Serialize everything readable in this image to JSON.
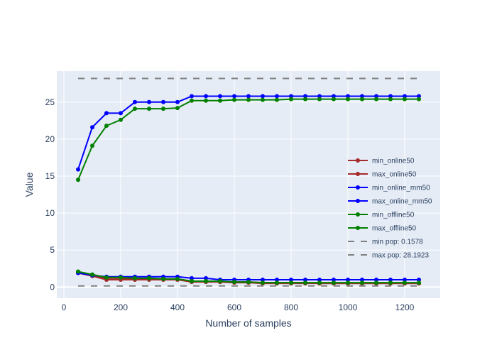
{
  "chart_data": {
    "type": "line",
    "xlabel": "Number of samples",
    "ylabel": "Value",
    "xlim": [
      -25,
      1325
    ],
    "ylim": [
      -1.5,
      29.2
    ],
    "xticks": [
      0,
      200,
      400,
      600,
      800,
      1000,
      1200
    ],
    "yticks": [
      0,
      5,
      10,
      15,
      20,
      25
    ],
    "grid": true,
    "legend_position": "right",
    "x": [
      50,
      100,
      150,
      200,
      250,
      300,
      350,
      400,
      450,
      500,
      550,
      600,
      650,
      700,
      750,
      800,
      850,
      900,
      950,
      1000,
      1050,
      1100,
      1150,
      1200,
      1250
    ],
    "series": [
      {
        "name": "min_online50",
        "color": "#a52a2a",
        "dash": "solid",
        "markers": true,
        "values": [
          1.9,
          1.5,
          1.0,
          1.0,
          1.0,
          1.0,
          1.0,
          1.0,
          0.7,
          0.7,
          0.7,
          0.6,
          0.6,
          0.5,
          0.5,
          0.5,
          0.5,
          0.5,
          0.5,
          0.5,
          0.5,
          0.5,
          0.5,
          0.5,
          0.5
        ]
      },
      {
        "name": "max_online50",
        "color": "#a52a2a",
        "dash": "solid",
        "markers": true,
        "values": [
          2.0,
          1.6,
          1.2,
          1.2,
          1.1,
          1.1,
          1.1,
          1.1,
          0.8,
          0.8,
          0.7,
          0.7,
          0.7,
          0.6,
          0.6,
          0.6,
          0.6,
          0.5,
          0.5,
          0.5,
          0.5,
          0.5,
          0.5,
          0.5,
          0.5
        ]
      },
      {
        "name": "min_online_mm50",
        "color": "#0000ff",
        "dash": "solid",
        "markers": true,
        "values": [
          1.9,
          1.6,
          1.4,
          1.4,
          1.4,
          1.4,
          1.4,
          1.4,
          1.2,
          1.2,
          1.0,
          1.0,
          1.0,
          1.0,
          1.0,
          1.0,
          1.0,
          1.0,
          1.0,
          1.0,
          1.0,
          1.0,
          1.0,
          1.0,
          1.0
        ]
      },
      {
        "name": "max_online_mm50",
        "color": "#0000ff",
        "dash": "solid",
        "markers": true,
        "values": [
          15.9,
          21.6,
          23.5,
          23.5,
          25.0,
          25.0,
          25.0,
          25.0,
          25.8,
          25.8,
          25.8,
          25.8,
          25.8,
          25.8,
          25.8,
          25.8,
          25.8,
          25.8,
          25.8,
          25.8,
          25.8,
          25.8,
          25.8,
          25.8,
          25.8
        ]
      },
      {
        "name": "min_offline50",
        "color": "#008000",
        "dash": "solid",
        "markers": true,
        "values": [
          2.1,
          1.7,
          1.3,
          1.3,
          1.2,
          1.2,
          1.1,
          1.1,
          0.8,
          0.8,
          0.8,
          0.7,
          0.7,
          0.6,
          0.6,
          0.6,
          0.6,
          0.6,
          0.6,
          0.6,
          0.6,
          0.6,
          0.6,
          0.6,
          0.6
        ]
      },
      {
        "name": "max_offline50",
        "color": "#008000",
        "dash": "solid",
        "markers": true,
        "values": [
          14.5,
          19.1,
          21.8,
          22.6,
          24.1,
          24.1,
          24.1,
          24.2,
          25.2,
          25.2,
          25.2,
          25.3,
          25.3,
          25.3,
          25.3,
          25.4,
          25.4,
          25.4,
          25.4,
          25.4,
          25.4,
          25.4,
          25.4,
          25.4,
          25.4
        ]
      },
      {
        "name": "min pop: 0.1578",
        "color": "#808080",
        "dash": "dash",
        "markers": false,
        "values": [
          0.1578,
          0.1578,
          0.1578,
          0.1578,
          0.1578,
          0.1578,
          0.1578,
          0.1578,
          0.1578,
          0.1578,
          0.1578,
          0.1578,
          0.1578,
          0.1578,
          0.1578,
          0.1578,
          0.1578,
          0.1578,
          0.1578,
          0.1578,
          0.1578,
          0.1578,
          0.1578,
          0.1578,
          0.1578
        ]
      },
      {
        "name": "max pop: 28.1923",
        "color": "#808080",
        "dash": "dash",
        "markers": false,
        "values": [
          28.1923,
          28.1923,
          28.1923,
          28.1923,
          28.1923,
          28.1923,
          28.1923,
          28.1923,
          28.1923,
          28.1923,
          28.1923,
          28.1923,
          28.1923,
          28.1923,
          28.1923,
          28.1923,
          28.1923,
          28.1923,
          28.1923,
          28.1923,
          28.1923,
          28.1923,
          28.1923,
          28.1923,
          28.1923
        ]
      }
    ]
  }
}
